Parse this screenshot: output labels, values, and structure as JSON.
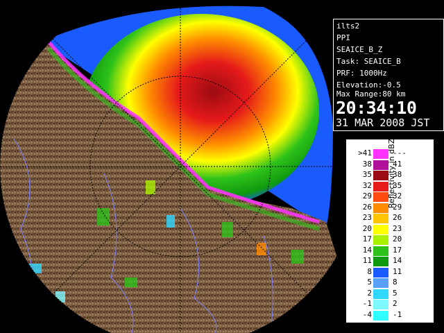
{
  "info": {
    "radar_name": "ilts2",
    "scan_type": "PPI",
    "product": "SEAICE_B_Z",
    "task": "Task: SEAICE_B",
    "prf": "PRF: 1000Hz",
    "elevation": "Elevation:-0.5",
    "max_range": "Max Range:80 km",
    "time": "20:34:10",
    "date": "31 MAR 2008 JST"
  },
  "legend": {
    "title": "Reflectivity in dBZ",
    "colors": {
      "magenta": "#ff33ff",
      "purple": "#b0109a",
      "darkred": "#9b0b12",
      "red": "#e51a1a",
      "orangered": "#ff4a10",
      "orange": "#ff8c00",
      "gold": "#ffc400",
      "yellow": "#ffff00",
      "lime": "#a8f000",
      "green": "#2ec21a",
      "darkgreen": "#0f9a0f",
      "blue": "#1a5bff",
      "lightblue": "#5aa0ff",
      "cyan": "#30d8ff",
      "lightcyan": "#7cf8ff",
      "cyanmax": "#30ffff"
    },
    "rows": [
      {
        "left": ">41",
        "right": "---",
        "color": "#ff33ff"
      },
      {
        "left": "38",
        "right": "41",
        "color": "#b0109a"
      },
      {
        "left": "35",
        "right": "38",
        "color": "#9b0b12"
      },
      {
        "left": "32",
        "right": "35",
        "color": "#e51a1a"
      },
      {
        "left": "29",
        "right": "32",
        "color": "#ff4a10"
      },
      {
        "left": "26",
        "right": "29",
        "color": "#ff8c00"
      },
      {
        "left": "23",
        "right": "26",
        "color": "#ffc400"
      },
      {
        "left": "20",
        "right": "23",
        "color": "#ffff00"
      },
      {
        "left": "17",
        "right": "20",
        "color": "#a8f000"
      },
      {
        "left": "14",
        "right": "17",
        "color": "#2ec21a"
      },
      {
        "left": "11",
        "right": "14",
        "color": "#0f9a0f"
      },
      {
        "left": "8",
        "right": "11",
        "color": "#1a5bff"
      },
      {
        "left": "5",
        "right": "8",
        "color": "#5aa0ff"
      },
      {
        "left": "2",
        "right": "5",
        "color": "#30d8ff"
      },
      {
        "left": "-1",
        "right": "2",
        "color": "#7cf8ff"
      },
      {
        "left": "-4",
        "right": "-1",
        "color": "#30ffff"
      }
    ]
  },
  "map": {
    "land_color": "#7a5b3e",
    "land_dark": "#5b3f2a",
    "sea_blue": "#1a5bff",
    "boundary_color": "#8080ff"
  }
}
